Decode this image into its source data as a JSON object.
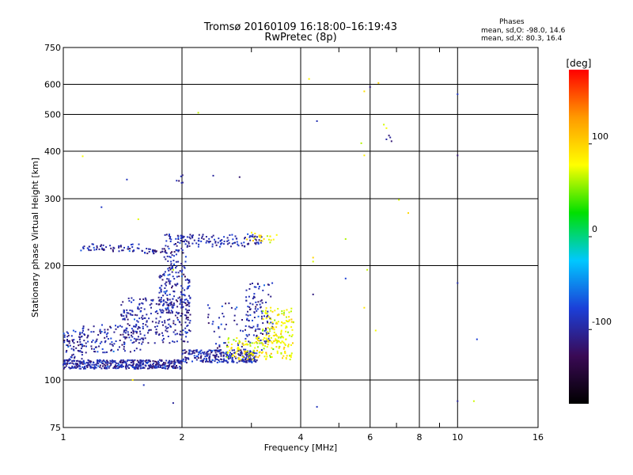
{
  "chart_data": {
    "type": "scatter",
    "title": "Tromsø 20160109 16:18:00–16:19:43",
    "subtitle": "RwPretec (8p)",
    "xlabel": "Frequency [MHz]",
    "ylabel": "Stationary phase Virtual Height [km]",
    "x_scale": "log",
    "y_scale": "log",
    "xlim": [
      1,
      16
    ],
    "ylim": [
      75,
      750
    ],
    "x_ticks": [
      1,
      2,
      4,
      6,
      8,
      10,
      16
    ],
    "x_minor_ticks": [
      3,
      5,
      7,
      9
    ],
    "y_ticks": [
      75,
      100,
      200,
      300,
      400,
      500,
      600,
      750
    ],
    "grid": true,
    "stats": {
      "title": "Phases",
      "line1": "mean, sd,O: -98.0, 14.6",
      "line2": "mean, sd,X:  80.3, 16.4"
    },
    "colorbar": {
      "label": "[deg]",
      "range": [
        -180,
        180
      ],
      "ticks": [
        -100,
        0,
        100
      ],
      "colormap": "rainbow",
      "stops": [
        "#000000",
        "#3a0a55",
        "#1b3fd8",
        "#00c8ff",
        "#00e000",
        "#ffff00",
        "#ff9a00",
        "#ff0000"
      ]
    },
    "series": [
      {
        "name": "O",
        "mean_phase": -98.0,
        "clusters": [
          {
            "f": [
              1.0,
              2.0
            ],
            "h": [
              107,
              113
            ],
            "n": 420
          },
          {
            "f": [
              2.0,
              3.1
            ],
            "h": [
              111,
              120
            ],
            "n": 260
          },
          {
            "f": [
              1.0,
              1.12
            ],
            "h": [
              110,
              135
            ],
            "n": 70
          },
          {
            "f": [
              1.1,
              1.6
            ],
            "h": [
              118,
              140
            ],
            "n": 120
          },
          {
            "f": [
              1.4,
              2.1
            ],
            "h": [
              125,
              165
            ],
            "n": 260
          },
          {
            "f": [
              1.75,
              2.1
            ],
            "h": [
              150,
              190
            ],
            "n": 120
          },
          {
            "f": [
              1.8,
              2.05
            ],
            "h": [
              190,
              220
            ],
            "n": 45
          },
          {
            "f": [
              1.6,
              2.0
            ],
            "h": [
              215,
              222
            ],
            "n": 40
          },
          {
            "f": [
              1.1,
              1.6
            ],
            "h": [
              218,
              228
            ],
            "n": 60
          },
          {
            "f": [
              1.8,
              3.2
            ],
            "h": [
              224,
              242
            ],
            "n": 140
          },
          {
            "f": [
              2.3,
              3.3
            ],
            "h": [
              118,
              160
            ],
            "n": 70
          },
          {
            "f": [
              2.9,
              3.4
            ],
            "h": [
              125,
              180
            ],
            "n": 90
          },
          {
            "f": [
              1.9,
              2.02
            ],
            "h": [
              330,
              350
            ],
            "n": 6
          }
        ],
        "points": [
          [
            2.4,
            345
          ],
          [
            2.8,
            342
          ],
          [
            1.45,
            337
          ],
          [
            1.25,
            285
          ],
          [
            6.6,
            430
          ],
          [
            6.7,
            440
          ],
          [
            6.8,
            425
          ],
          [
            6.75,
            435
          ],
          [
            4.4,
            480
          ],
          [
            6.0,
            590
          ],
          [
            10.0,
            565
          ],
          [
            10.0,
            390
          ],
          [
            10.0,
            180
          ],
          [
            5.2,
            185
          ],
          [
            4.3,
            168
          ],
          [
            11.2,
            128
          ],
          [
            1.6,
            97
          ],
          [
            1.9,
            87
          ],
          [
            4.4,
            85
          ],
          [
            10.0,
            88
          ]
        ]
      },
      {
        "name": "X",
        "mean_phase": 80.3,
        "clusters": [
          {
            "f": [
              2.6,
              3.8
            ],
            "h": [
              113,
              130
            ],
            "n": 150
          },
          {
            "f": [
              3.2,
              3.85
            ],
            "h": [
              125,
              155
            ],
            "n": 100
          },
          {
            "f": [
              2.9,
              3.5
            ],
            "h": [
              230,
              245
            ],
            "n": 20
          }
        ],
        "points": [
          [
            5.7,
            420
          ],
          [
            5.8,
            390
          ],
          [
            5.8,
            575
          ],
          [
            6.6,
            460
          ],
          [
            6.5,
            470
          ],
          [
            4.2,
            620
          ],
          [
            2.2,
            505
          ],
          [
            1.12,
            388
          ],
          [
            7.1,
            298
          ],
          [
            5.2,
            235
          ],
          [
            4.3,
            210
          ],
          [
            4.3,
            205
          ],
          [
            1.55,
            265
          ],
          [
            7.5,
            275
          ],
          [
            5.8,
            155
          ],
          [
            5.9,
            195
          ],
          [
            6.3,
            605
          ],
          [
            6.2,
            135
          ],
          [
            11.0,
            88
          ],
          [
            1.9,
            195
          ],
          [
            1.5,
            100
          ]
        ]
      }
    ]
  }
}
